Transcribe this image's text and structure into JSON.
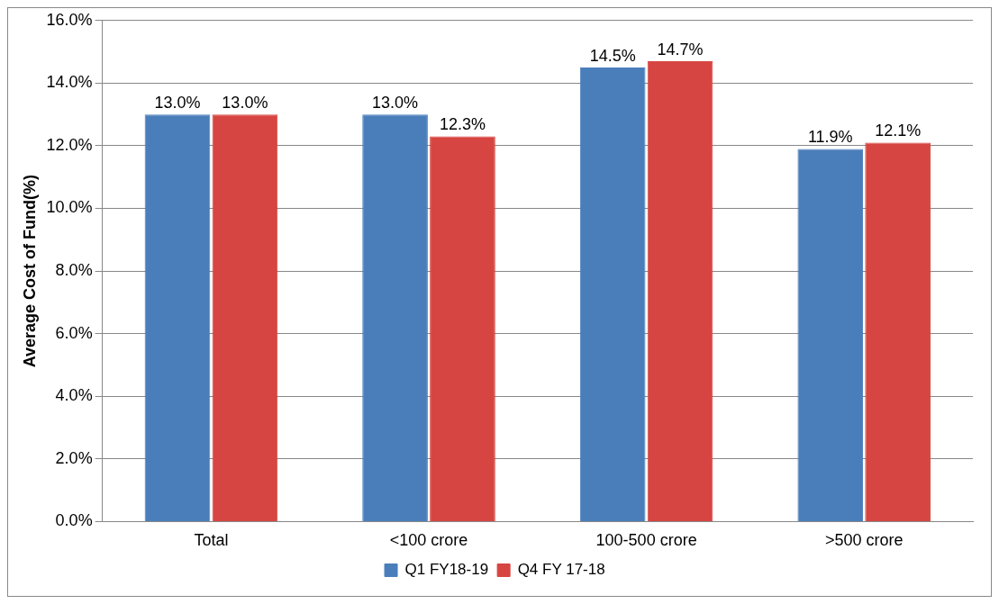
{
  "chart_data": {
    "type": "bar",
    "ylabel": "Average Cost of Fund(%)",
    "categories": [
      "Total",
      "<100 crore",
      "100-500 crore",
      ">500 crore"
    ],
    "series": [
      {
        "name": "Q1 FY18-19",
        "color": "#4a7ebb",
        "values": [
          13.0,
          13.0,
          14.5,
          11.9
        ],
        "value_labels": [
          "13.0%",
          "13.0%",
          "14.5%",
          "11.9%"
        ]
      },
      {
        "name": "Q4 FY 17-18",
        "color": "#d64541",
        "values": [
          13.0,
          12.3,
          14.7,
          12.1
        ],
        "value_labels": [
          "13.0%",
          "12.3%",
          "14.7%",
          "12.1%"
        ]
      }
    ],
    "ylim": [
      0,
      16
    ],
    "yticks": [
      {
        "value": 0,
        "label": "0.0%"
      },
      {
        "value": 2,
        "label": "2.0%"
      },
      {
        "value": 4,
        "label": "4.0%"
      },
      {
        "value": 6,
        "label": "6.0%"
      },
      {
        "value": 8,
        "label": "8.0%"
      },
      {
        "value": 10,
        "label": "10.0%"
      },
      {
        "value": 12,
        "label": "12.0%"
      },
      {
        "value": 14,
        "label": "14.0%"
      },
      {
        "value": 16,
        "label": "16.0%"
      }
    ],
    "grid": "y",
    "legend": "bottom"
  }
}
